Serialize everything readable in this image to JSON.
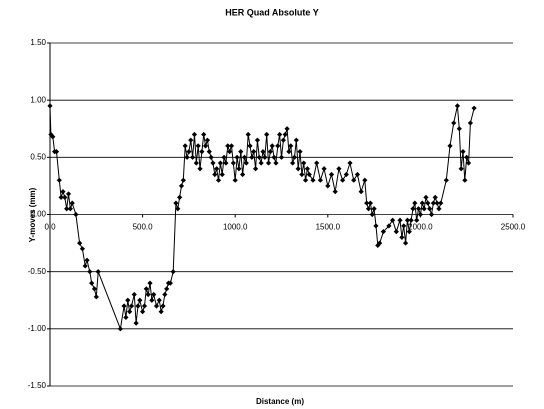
{
  "chart_data": {
    "type": "line",
    "title": "HER Quad Absolute Y",
    "xlabel": "Distance (m)",
    "ylabel": "Y-moves (mm)",
    "x": [
      0,
      5,
      15,
      25,
      35,
      50,
      60,
      70,
      80,
      90,
      100,
      110,
      120,
      140,
      160,
      175,
      190,
      200,
      215,
      225,
      240,
      250,
      260,
      380,
      400,
      410,
      420,
      430,
      440,
      455,
      465,
      475,
      485,
      500,
      510,
      520,
      530,
      540,
      550,
      560,
      575,
      590,
      600,
      610,
      620,
      630,
      640,
      650,
      665,
      680,
      690,
      700,
      710,
      720,
      730,
      740,
      750,
      760,
      770,
      780,
      790,
      800,
      810,
      820,
      830,
      840,
      850,
      860,
      870,
      880,
      890,
      900,
      910,
      920,
      930,
      940,
      950,
      960,
      970,
      980,
      990,
      1000,
      1010,
      1020,
      1030,
      1040,
      1050,
      1060,
      1070,
      1080,
      1090,
      1100,
      1110,
      1120,
      1130,
      1140,
      1150,
      1160,
      1170,
      1180,
      1190,
      1200,
      1210,
      1220,
      1230,
      1240,
      1250,
      1260,
      1270,
      1280,
      1290,
      1300,
      1310,
      1320,
      1330,
      1340,
      1350,
      1360,
      1370,
      1380,
      1390,
      1400,
      1420,
      1440,
      1460,
      1480,
      1500,
      1520,
      1540,
      1560,
      1580,
      1600,
      1620,
      1640,
      1660,
      1680,
      1700,
      1710,
      1720,
      1730,
      1740,
      1750,
      1760,
      1770,
      1780,
      1800,
      1830,
      1850,
      1870,
      1890,
      1900,
      1910,
      1920,
      1930,
      1940,
      1950,
      1960,
      1970,
      1980,
      1990,
      2000,
      2010,
      2020,
      2030,
      2040,
      2050,
      2060,
      2070,
      2080,
      2090,
      2100,
      2110,
      2140,
      2160,
      2180,
      2200,
      2210,
      2220,
      2230,
      2240,
      2250,
      2260,
      2270,
      2290
    ],
    "series": [
      {
        "name": "Y-moves",
        "color": "#000000",
        "values": [
          0.95,
          0.7,
          0.68,
          0.55,
          0.55,
          0.3,
          0.15,
          0.2,
          0.15,
          0.05,
          0.18,
          0.05,
          0.1,
          0.0,
          -0.25,
          -0.3,
          -0.45,
          -0.4,
          -0.5,
          -0.6,
          -0.65,
          -0.72,
          -0.5,
          -1.0,
          -0.8,
          -0.9,
          -0.75,
          -0.85,
          -0.8,
          -0.7,
          -0.95,
          -0.8,
          -0.75,
          -0.85,
          -0.8,
          -0.65,
          -0.7,
          -0.6,
          -0.75,
          -0.7,
          -0.8,
          -0.75,
          -0.85,
          -0.8,
          -0.7,
          -0.65,
          -0.6,
          -0.6,
          -0.5,
          0.1,
          0.05,
          0.15,
          0.25,
          0.3,
          0.6,
          0.5,
          0.55,
          0.65,
          0.5,
          0.7,
          0.45,
          0.6,
          0.4,
          0.55,
          0.7,
          0.6,
          0.65,
          0.55,
          0.5,
          0.45,
          0.35,
          0.4,
          0.3,
          0.45,
          0.35,
          0.5,
          0.45,
          0.6,
          0.55,
          0.6,
          0.45,
          0.3,
          0.5,
          0.4,
          0.55,
          0.35,
          0.5,
          0.45,
          0.7,
          0.6,
          0.5,
          0.55,
          0.4,
          0.65,
          0.5,
          0.45,
          0.55,
          0.5,
          0.7,
          0.45,
          0.55,
          0.6,
          0.5,
          0.45,
          0.6,
          0.7,
          0.5,
          0.65,
          0.7,
          0.75,
          0.55,
          0.6,
          0.45,
          0.5,
          0.65,
          0.4,
          0.55,
          0.35,
          0.45,
          0.3,
          0.4,
          0.35,
          0.3,
          0.45,
          0.3,
          0.4,
          0.25,
          0.35,
          0.2,
          0.4,
          0.3,
          0.35,
          0.45,
          0.3,
          0.35,
          0.2,
          0.3,
          0.1,
          0.05,
          0.1,
          0.0,
          0.05,
          -0.1,
          -0.27,
          -0.25,
          -0.15,
          -0.1,
          -0.05,
          -0.15,
          -0.05,
          -0.2,
          -0.1,
          -0.25,
          -0.05,
          -0.15,
          -0.05,
          0.05,
          0.1,
          -0.05,
          0.05,
          0.0,
          0.1,
          0.05,
          0.15,
          0.1,
          0.05,
          0.0,
          0.1,
          0.15,
          0.1,
          0.05,
          0.1,
          0.3,
          0.6,
          0.8,
          0.95,
          0.75,
          0.4,
          0.55,
          0.3,
          0.5,
          0.45,
          0.8,
          0.93
        ]
      }
    ],
    "xlim": [
      0,
      2500
    ],
    "xticks": [
      {
        "value": 0,
        "label": "0.0"
      },
      {
        "value": 500,
        "label": "500.0"
      },
      {
        "value": 1000,
        "label": "1000.0"
      },
      {
        "value": 1500,
        "label": "1500.0"
      },
      {
        "value": 2000,
        "label": "2000.0"
      },
      {
        "value": 2500,
        "label": "2500.0"
      }
    ],
    "ylim": [
      -1.5,
      1.5
    ],
    "yticks": [
      {
        "value": -1.5,
        "label": "-1.50"
      },
      {
        "value": -1,
        "label": "-1.00"
      },
      {
        "value": -0.5,
        "label": "-0.50"
      },
      {
        "value": 0,
        "label": "0.00"
      },
      {
        "value": 0.5,
        "label": "0.50"
      },
      {
        "value": 1,
        "label": "1.00"
      },
      {
        "value": 1.5,
        "label": "1.50"
      }
    ],
    "grid": true
  }
}
